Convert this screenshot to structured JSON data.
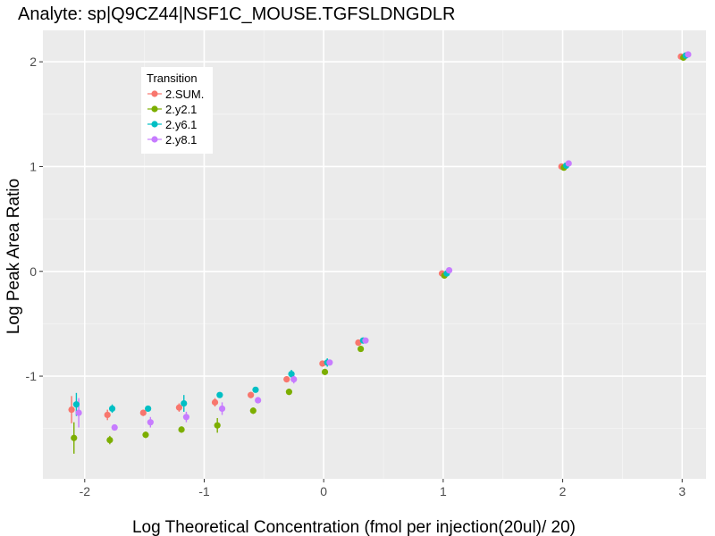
{
  "chart_data": {
    "type": "scatter",
    "title": "Analyte: sp|Q9CZ44|NSF1C_MOUSE.TGFSLDNGDLR",
    "xlabel": "Log Theoretical Concentration (fmol per injection(20ul)/ 20)",
    "ylabel": "Log Peak Area Ratio",
    "xlim": [
      -2.35,
      3.2
    ],
    "ylim": [
      -1.98,
      2.3
    ],
    "x_ticks": [
      -2,
      -1,
      0,
      1,
      2,
      3
    ],
    "x_tick_labels": [
      "-2",
      "-1",
      "0",
      "1",
      "2",
      "3"
    ],
    "y_ticks": [
      -1,
      0,
      1,
      2
    ],
    "y_tick_labels": [
      "-1",
      "0",
      "1",
      "2"
    ],
    "grid": true,
    "legend": {
      "title": "Transition",
      "position": "top-left"
    },
    "series": [
      {
        "name": "2.SUM.",
        "color": "#F8766D",
        "points": [
          {
            "x": -2.11,
            "y": -1.32,
            "err": 0.13
          },
          {
            "x": -1.81,
            "y": -1.37,
            "err": 0.05
          },
          {
            "x": -1.51,
            "y": -1.35,
            "err": 0.03
          },
          {
            "x": -1.21,
            "y": -1.3,
            "err": 0.04
          },
          {
            "x": -0.91,
            "y": -1.25,
            "err": 0.04
          },
          {
            "x": -0.61,
            "y": -1.18,
            "err": 0.03
          },
          {
            "x": -0.31,
            "y": -1.03,
            "err": 0.03
          },
          {
            "x": -0.01,
            "y": -0.88,
            "err": 0.02
          },
          {
            "x": 0.29,
            "y": -0.68,
            "err": 0.02
          },
          {
            "x": 0.99,
            "y": -0.02,
            "err": 0.0
          },
          {
            "x": 1.99,
            "y": 1.0,
            "err": 0.0
          },
          {
            "x": 2.99,
            "y": 2.05,
            "err": 0.0
          }
        ]
      },
      {
        "name": "2.y2.1",
        "color": "#7CAE00",
        "points": [
          {
            "x": -2.09,
            "y": -1.59,
            "err": 0.15
          },
          {
            "x": -1.79,
            "y": -1.61,
            "err": 0.04
          },
          {
            "x": -1.49,
            "y": -1.56,
            "err": 0.03
          },
          {
            "x": -1.19,
            "y": -1.51,
            "err": 0.03
          },
          {
            "x": -0.89,
            "y": -1.47,
            "err": 0.07
          },
          {
            "x": -0.59,
            "y": -1.33,
            "err": 0.03
          },
          {
            "x": -0.29,
            "y": -1.15,
            "err": 0.03
          },
          {
            "x": 0.01,
            "y": -0.96,
            "err": 0.02
          },
          {
            "x": 0.31,
            "y": -0.74,
            "err": 0.02
          },
          {
            "x": 1.01,
            "y": -0.04,
            "err": 0.0
          },
          {
            "x": 2.01,
            "y": 0.99,
            "err": 0.0
          },
          {
            "x": 3.01,
            "y": 2.04,
            "err": 0.0
          }
        ]
      },
      {
        "name": "2.y6.1",
        "color": "#00BFC4",
        "points": [
          {
            "x": -2.07,
            "y": -1.27,
            "err": 0.11
          },
          {
            "x": -1.77,
            "y": -1.31,
            "err": 0.04
          },
          {
            "x": -1.47,
            "y": -1.31,
            "err": 0.02
          },
          {
            "x": -1.17,
            "y": -1.26,
            "err": 0.08
          },
          {
            "x": -0.87,
            "y": -1.18,
            "err": 0.02
          },
          {
            "x": -0.57,
            "y": -1.13,
            "err": 0.02
          },
          {
            "x": -0.27,
            "y": -0.98,
            "err": 0.04
          },
          {
            "x": 0.03,
            "y": -0.87,
            "err": 0.04
          },
          {
            "x": 0.33,
            "y": -0.66,
            "err": 0.02
          },
          {
            "x": 1.03,
            "y": -0.02,
            "err": 0.0
          },
          {
            "x": 2.03,
            "y": 1.01,
            "err": 0.0
          },
          {
            "x": 3.03,
            "y": 2.06,
            "err": 0.0
          }
        ]
      },
      {
        "name": "2.y8.1",
        "color": "#C77CFF",
        "points": [
          {
            "x": -2.05,
            "y": -1.35,
            "err": 0.14
          },
          {
            "x": -1.75,
            "y": -1.49,
            "err": 0.03
          },
          {
            "x": -1.45,
            "y": -1.44,
            "err": 0.05
          },
          {
            "x": -1.15,
            "y": -1.39,
            "err": 0.05
          },
          {
            "x": -0.85,
            "y": -1.31,
            "err": 0.06
          },
          {
            "x": -0.55,
            "y": -1.23,
            "err": 0.03
          },
          {
            "x": -0.25,
            "y": -1.03,
            "err": 0.04
          },
          {
            "x": 0.05,
            "y": -0.87,
            "err": 0.02
          },
          {
            "x": 0.35,
            "y": -0.66,
            "err": 0.02
          },
          {
            "x": 1.05,
            "y": 0.01,
            "err": 0.0
          },
          {
            "x": 2.05,
            "y": 1.03,
            "err": 0.0
          },
          {
            "x": 3.05,
            "y": 2.07,
            "err": 0.0
          }
        ]
      }
    ]
  }
}
